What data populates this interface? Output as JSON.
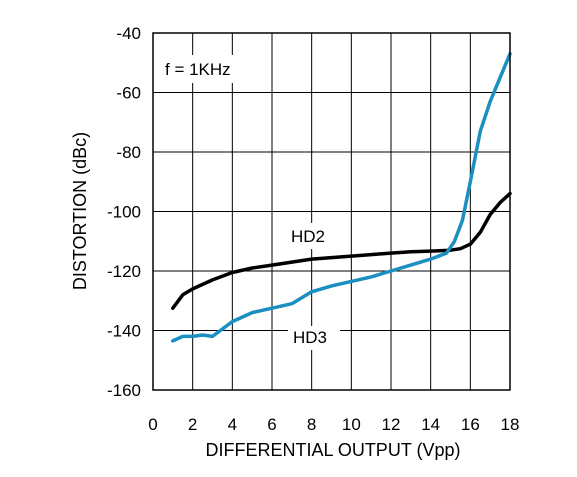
{
  "chart_data": {
    "type": "line",
    "xlabel": "DIFFERENTIAL OUTPUT (Vpp)",
    "ylabel": "DISTORTION (dBc)",
    "xlim": [
      0,
      18
    ],
    "ylim": [
      -160,
      -40
    ],
    "x_ticks": [
      0,
      2,
      4,
      6,
      8,
      10,
      12,
      14,
      16,
      18
    ],
    "y_ticks": [
      -40,
      -60,
      -80,
      -100,
      -120,
      -140,
      -160
    ],
    "x_tick_labels": [
      "0",
      "2",
      "4",
      "6",
      "8",
      "10",
      "12",
      "14",
      "16",
      "18"
    ],
    "y_tick_labels": [
      "-40",
      "-60",
      "-80",
      "-100",
      "-120",
      "-140",
      "-160"
    ],
    "grid": true,
    "condition_label": "f = 1KHz",
    "series": [
      {
        "name": "HD2",
        "color": "#000000",
        "x": [
          1.0,
          1.5,
          2.0,
          3.0,
          4.0,
          5.0,
          6.0,
          7.0,
          8.0,
          9.0,
          10.0,
          11.0,
          12.0,
          13.0,
          14.0,
          15.0,
          15.5,
          16.0,
          16.5,
          17.0,
          17.5,
          18.0
        ],
        "y": [
          -132.5,
          -128,
          -126,
          -123,
          -120.5,
          -119,
          -118,
          -117,
          -116,
          -115.5,
          -115,
          -114.5,
          -114,
          -113.5,
          -113.3,
          -113,
          -112.5,
          -111,
          -107,
          -101,
          -97,
          -94
        ]
      },
      {
        "name": "HD3",
        "color": "#1a8fc0",
        "x": [
          1.0,
          1.5,
          2.0,
          2.5,
          3.0,
          3.5,
          4.0,
          5.0,
          6.0,
          7.0,
          8.0,
          9.0,
          10.0,
          11.0,
          12.0,
          13.0,
          14.0,
          14.8,
          15.2,
          15.6,
          16.0,
          16.5,
          17.0,
          17.5,
          18.0
        ],
        "y": [
          -143.5,
          -142,
          -142,
          -141.5,
          -142,
          -139.5,
          -137,
          -134,
          -132.5,
          -131,
          -127,
          -125,
          -123.5,
          -122,
          -120,
          -118,
          -116,
          -114,
          -110,
          -103,
          -90,
          -73,
          -63,
          -55,
          -47
        ]
      }
    ]
  }
}
